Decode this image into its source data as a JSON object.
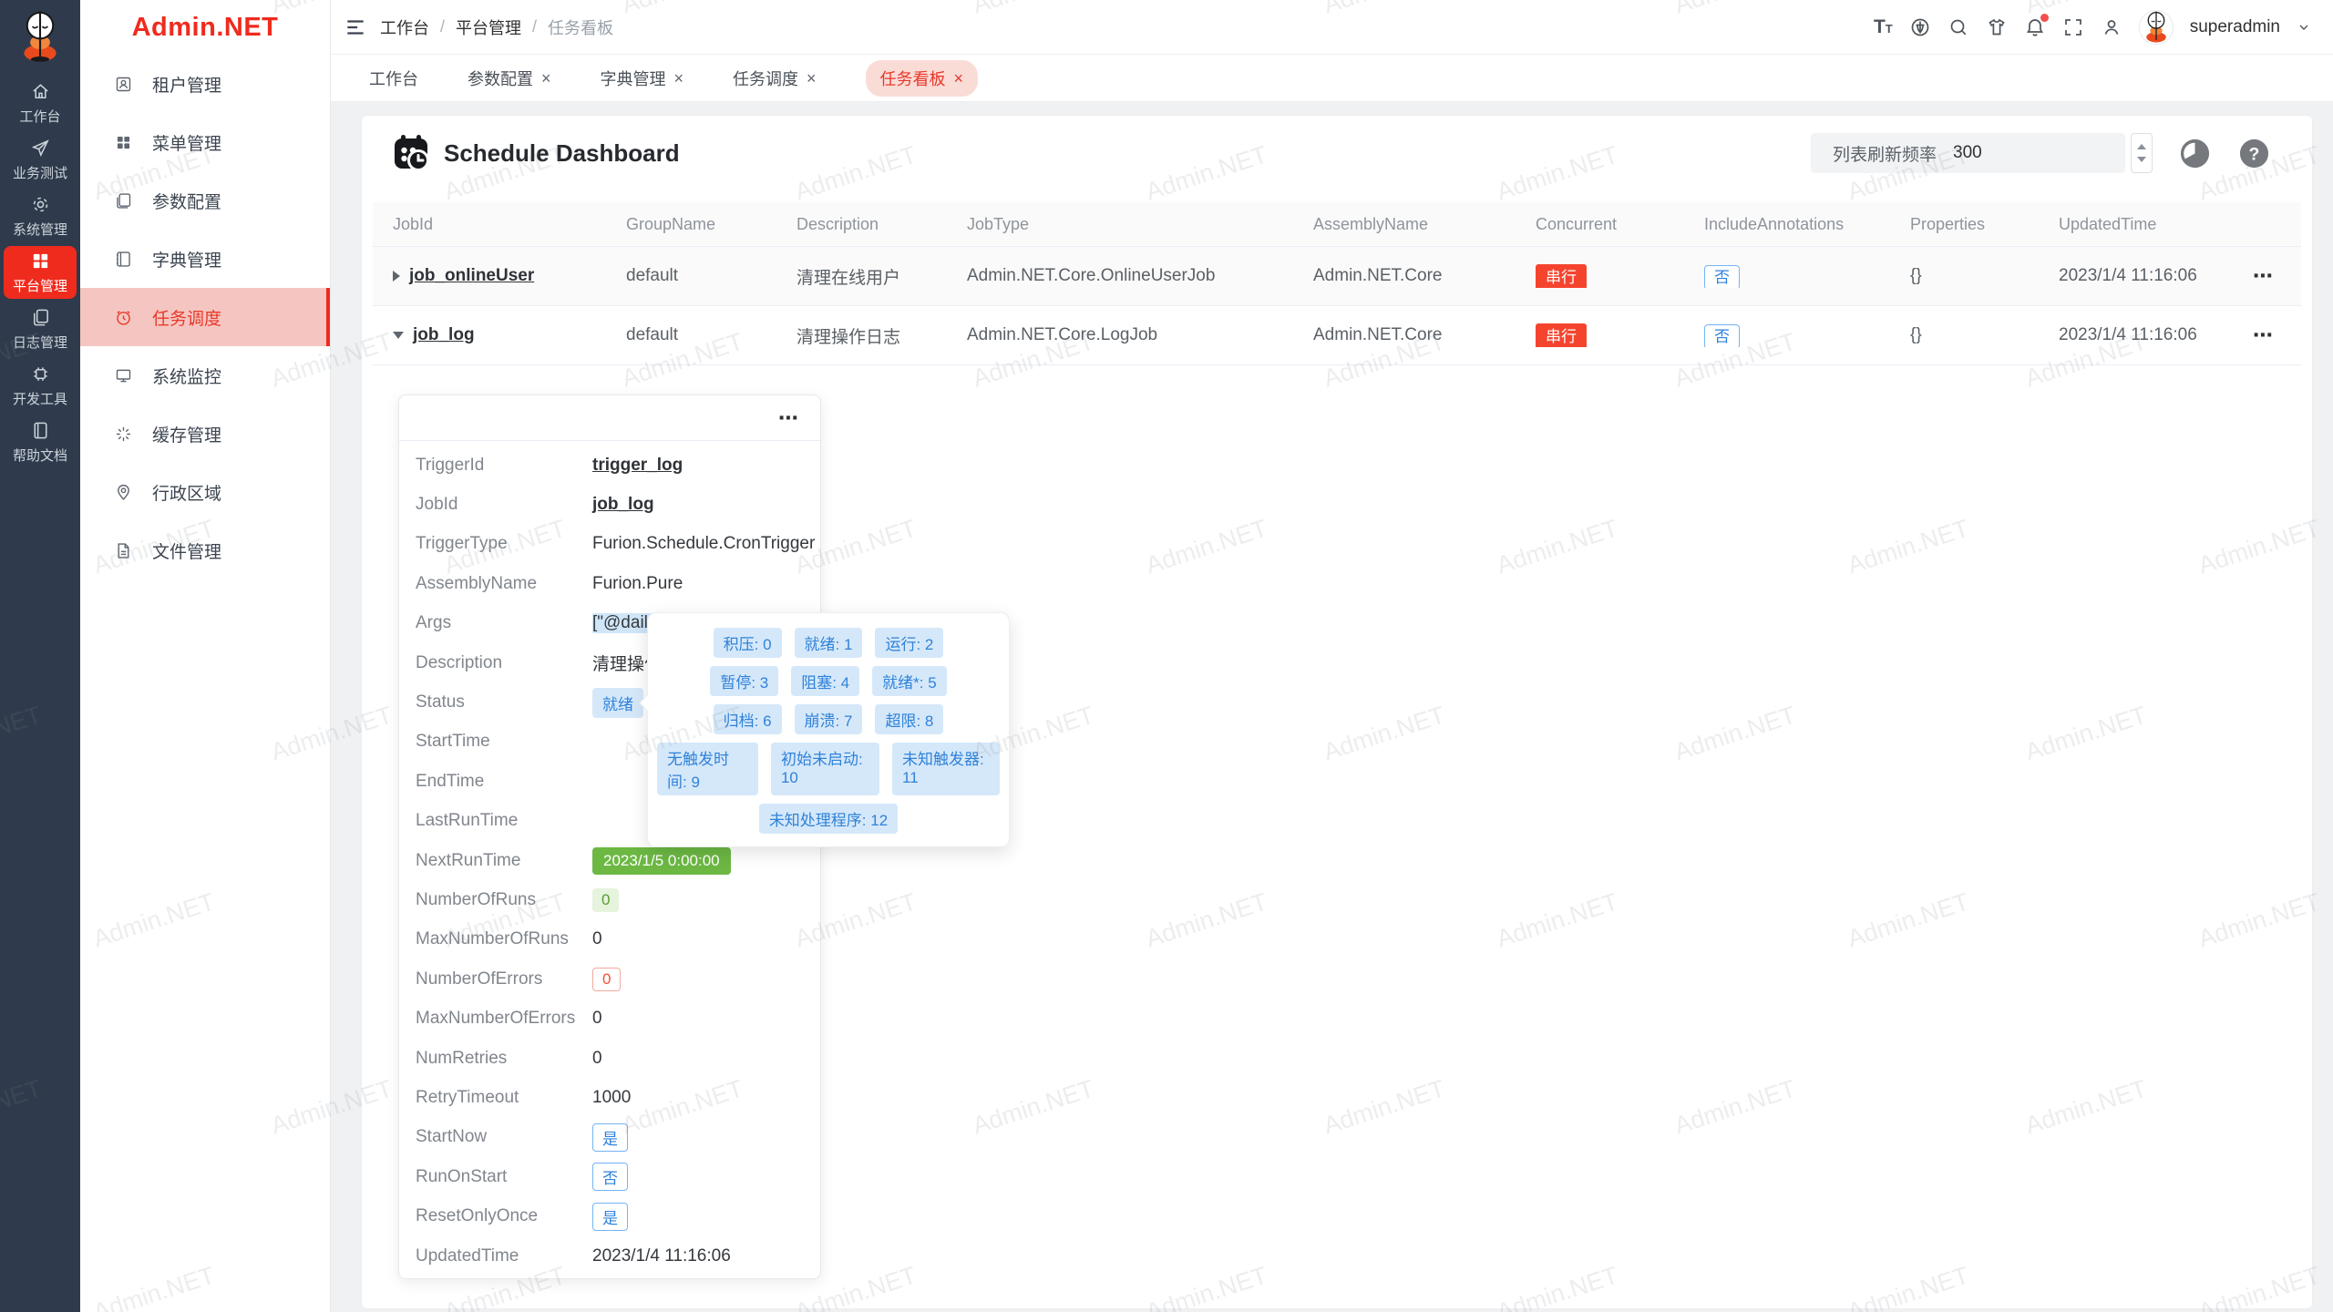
{
  "watermark": "Admin.NET",
  "brand": {
    "name": "Admin.NET"
  },
  "icons": {
    "close": "×",
    "more": "⋯"
  },
  "rail": {
    "items": [
      {
        "label": "工作台",
        "icon": "home-icon"
      },
      {
        "label": "业务测试",
        "icon": "send-icon"
      },
      {
        "label": "系统管理",
        "icon": "gear-icon"
      },
      {
        "label": "平台管理",
        "icon": "grid-icon",
        "active": true
      },
      {
        "label": "日志管理",
        "icon": "copy-icon"
      },
      {
        "label": "开发工具",
        "icon": "chip-icon"
      },
      {
        "label": "帮助文档",
        "icon": "book-icon"
      }
    ]
  },
  "sidebar": {
    "items": [
      {
        "label": "租户管理",
        "icon": "tenant-icon"
      },
      {
        "label": "菜单管理",
        "icon": "menu-grid-icon"
      },
      {
        "label": "参数配置",
        "icon": "params-icon"
      },
      {
        "label": "字典管理",
        "icon": "dictionary-icon"
      },
      {
        "label": "任务调度",
        "icon": "alarm-clock-icon",
        "active": true
      },
      {
        "label": "系统监控",
        "icon": "monitor-icon"
      },
      {
        "label": "缓存管理",
        "icon": "cache-icon"
      },
      {
        "label": "行政区域",
        "icon": "map-pin-icon"
      },
      {
        "label": "文件管理",
        "icon": "file-icon"
      }
    ]
  },
  "breadcrumb": {
    "items": [
      "工作台",
      "平台管理",
      "任务看板"
    ]
  },
  "user": {
    "name": "superadmin"
  },
  "tabs": [
    {
      "label": "工作台",
      "closable": false
    },
    {
      "label": "参数配置",
      "closable": true
    },
    {
      "label": "字典管理",
      "closable": true
    },
    {
      "label": "任务调度",
      "closable": true
    },
    {
      "label": "任务看板",
      "closable": true,
      "active": true
    }
  ],
  "toolbar": {
    "title": "Schedule Dashboard",
    "refresh_label": "列表刷新频率",
    "refresh_value": "300"
  },
  "table": {
    "columns": [
      "JobId",
      "GroupName",
      "Description",
      "JobType",
      "AssemblyName",
      "Concurrent",
      "IncludeAnnotations",
      "Properties",
      "UpdatedTime"
    ],
    "rows": [
      {
        "jobId": "job_onlineUser",
        "groupName": "default",
        "description": "清理在线用户",
        "jobType": "Admin.NET.Core.OnlineUserJob",
        "assemblyName": "Admin.NET.Core",
        "concurrent": "串行",
        "includeAnnotations": "否",
        "properties": "{}",
        "updatedTime": "2023/1/4 11:16:06"
      },
      {
        "jobId": "job_log",
        "groupName": "default",
        "description": "清理操作日志",
        "jobType": "Admin.NET.Core.LogJob",
        "assemblyName": "Admin.NET.Core",
        "concurrent": "串行",
        "includeAnnotations": "否",
        "properties": "{}",
        "updatedTime": "2023/1/4 11:16:06"
      }
    ]
  },
  "detail": {
    "rows": [
      {
        "label": "TriggerId",
        "value": "trigger_log"
      },
      {
        "label": "JobId",
        "value": "job_log"
      },
      {
        "label": "TriggerType",
        "value": "Furion.Schedule.CronTrigger"
      },
      {
        "label": "AssemblyName",
        "value": "Furion.Pure"
      },
      {
        "label": "Args",
        "value": "[\"@daily\"]"
      },
      {
        "label": "Description",
        "value": "清理操作日志"
      },
      {
        "label": "Status",
        "value": "就绪"
      },
      {
        "label": "StartTime",
        "value": ""
      },
      {
        "label": "EndTime",
        "value": ""
      },
      {
        "label": "LastRunTime",
        "value": ""
      },
      {
        "label": "NextRunTime",
        "value": "2023/1/5 0:00:00"
      },
      {
        "label": "NumberOfRuns",
        "value": "0"
      },
      {
        "label": "MaxNumberOfRuns",
        "value": "0"
      },
      {
        "label": "NumberOfErrors",
        "value": "0"
      },
      {
        "label": "MaxNumberOfErrors",
        "value": "0"
      },
      {
        "label": "NumRetries",
        "value": "0"
      },
      {
        "label": "RetryTimeout",
        "value": "1000"
      },
      {
        "label": "StartNow",
        "value": "是"
      },
      {
        "label": "RunOnStart",
        "value": "否"
      },
      {
        "label": "ResetOnlyOnce",
        "value": "是"
      },
      {
        "label": "UpdatedTime",
        "value": "2023/1/4 11:16:06"
      }
    ]
  },
  "tooltip": {
    "rows": [
      [
        "积压: 0",
        "就绪: 1",
        "运行: 2"
      ],
      [
        "暂停: 3",
        "阻塞: 4",
        "就绪*: 5"
      ],
      [
        "归档: 6",
        "崩溃: 7",
        "超限: 8"
      ],
      [
        "无触发时间: 9",
        "初始未启动: 10",
        "未知触发器: 11"
      ],
      [
        "未知处理程序: 12"
      ]
    ]
  },
  "colors": {
    "brand": "#ef2b1e",
    "danger": "#f5442e",
    "primary": "#409eff",
    "success": "#67c23a"
  }
}
